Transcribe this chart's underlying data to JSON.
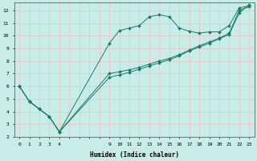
{
  "background_color": "#c8ece8",
  "grid_color": "#e8c8c8",
  "line_color": "#1a7a6e",
  "marker_style": "D",
  "marker_size": 2.0,
  "xlabel": "Humidex (Indice chaleur)",
  "xlim": [
    -0.5,
    23.5
  ],
  "ylim": [
    2.0,
    12.6
  ],
  "xtick_labels_show": [
    0,
    1,
    2,
    3,
    4,
    9,
    10,
    11,
    12,
    13,
    14,
    15,
    16,
    17,
    18,
    19,
    20,
    21,
    22,
    23
  ],
  "xtick_all": [
    0,
    1,
    2,
    3,
    4,
    5,
    6,
    7,
    8,
    9,
    10,
    11,
    12,
    13,
    14,
    15,
    16,
    17,
    18,
    19,
    20,
    21,
    22,
    23
  ],
  "yticks": [
    2,
    3,
    4,
    5,
    6,
    7,
    8,
    9,
    10,
    11,
    12
  ],
  "series": [
    {
      "x": [
        0,
        1,
        2,
        3,
        4,
        9,
        10,
        11,
        12,
        13,
        14,
        15,
        16,
        17,
        18,
        19,
        20,
        21,
        22,
        23
      ],
      "y": [
        6.0,
        4.8,
        4.2,
        3.6,
        2.4,
        9.4,
        10.4,
        10.6,
        10.8,
        11.5,
        11.65,
        11.5,
        10.6,
        10.35,
        10.2,
        10.3,
        10.3,
        10.8,
        12.2,
        12.35
      ]
    },
    {
      "x": [
        0,
        1,
        2,
        3,
        4,
        9,
        10,
        11,
        12,
        13,
        14,
        15,
        16,
        17,
        18,
        19,
        20,
        21,
        22,
        23
      ],
      "y": [
        6.0,
        4.8,
        4.2,
        3.6,
        2.4,
        7.0,
        7.15,
        7.3,
        7.5,
        7.75,
        8.0,
        8.2,
        8.5,
        8.85,
        9.2,
        9.5,
        9.8,
        10.2,
        12.0,
        12.3
      ]
    },
    {
      "x": [
        0,
        1,
        2,
        3,
        4,
        9,
        10,
        11,
        12,
        13,
        14,
        15,
        16,
        17,
        18,
        19,
        20,
        21,
        22,
        23
      ],
      "y": [
        6.0,
        4.8,
        4.2,
        3.6,
        2.4,
        6.7,
        6.9,
        7.1,
        7.35,
        7.6,
        7.85,
        8.1,
        8.4,
        8.8,
        9.1,
        9.4,
        9.75,
        10.1,
        11.8,
        12.45
      ]
    }
  ]
}
